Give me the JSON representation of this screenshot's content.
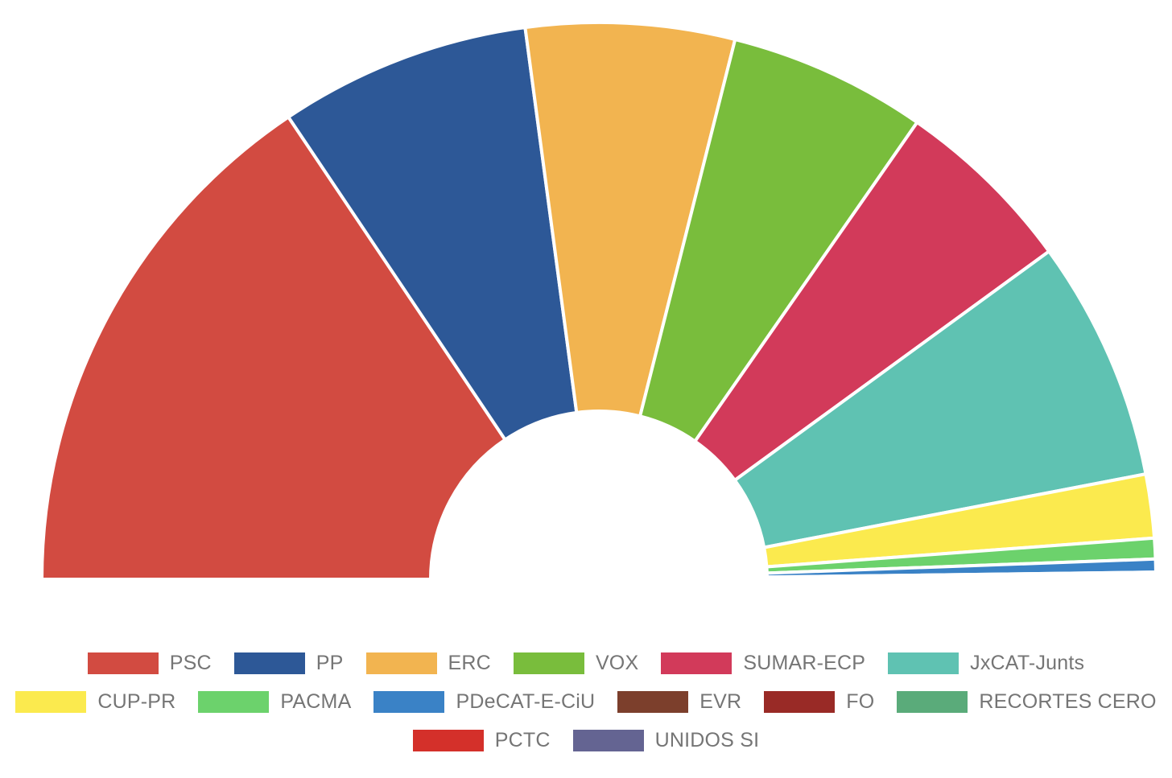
{
  "chart_data": {
    "type": "pie",
    "subtype": "semicircle-donut",
    "categories": [
      "PSC",
      "PP",
      "ERC",
      "VOX",
      "SUMAR-ECP",
      "JxCAT-Junts",
      "CUP-PR",
      "PACMA",
      "PDeCAT-E-CiU",
      "EVR",
      "FO",
      "RECORTES CERO",
      "PCTC",
      "UNIDOS SI"
    ],
    "values": [
      31.2,
      14.6,
      12.1,
      11.5,
      10.6,
      14.0,
      3.7,
      1.2,
      0.75,
      0.12,
      0.1,
      0.08,
      0.06,
      0.05
    ],
    "colors": [
      "#d24b41",
      "#2d5897",
      "#f2b450",
      "#79bd3c",
      "#d23a5a",
      "#5fc2b2",
      "#fbea4e",
      "#6cd26c",
      "#3a82c6",
      "#7c3f2c",
      "#992a26",
      "#5aab7a",
      "#d4302a",
      "#646492"
    ],
    "legend_position": "bottom",
    "legend_rows": [
      [
        "PSC",
        "PP",
        "ERC",
        "VOX",
        "SUMAR-ECP",
        "JxCAT-Junts"
      ],
      [
        "CUP-PR",
        "PACMA",
        "PDeCAT-E-CiU",
        "EVR",
        "FO",
        "RECORTES CERO"
      ],
      [
        "PCTC",
        "UNIDOS SI"
      ]
    ],
    "title": ""
  }
}
